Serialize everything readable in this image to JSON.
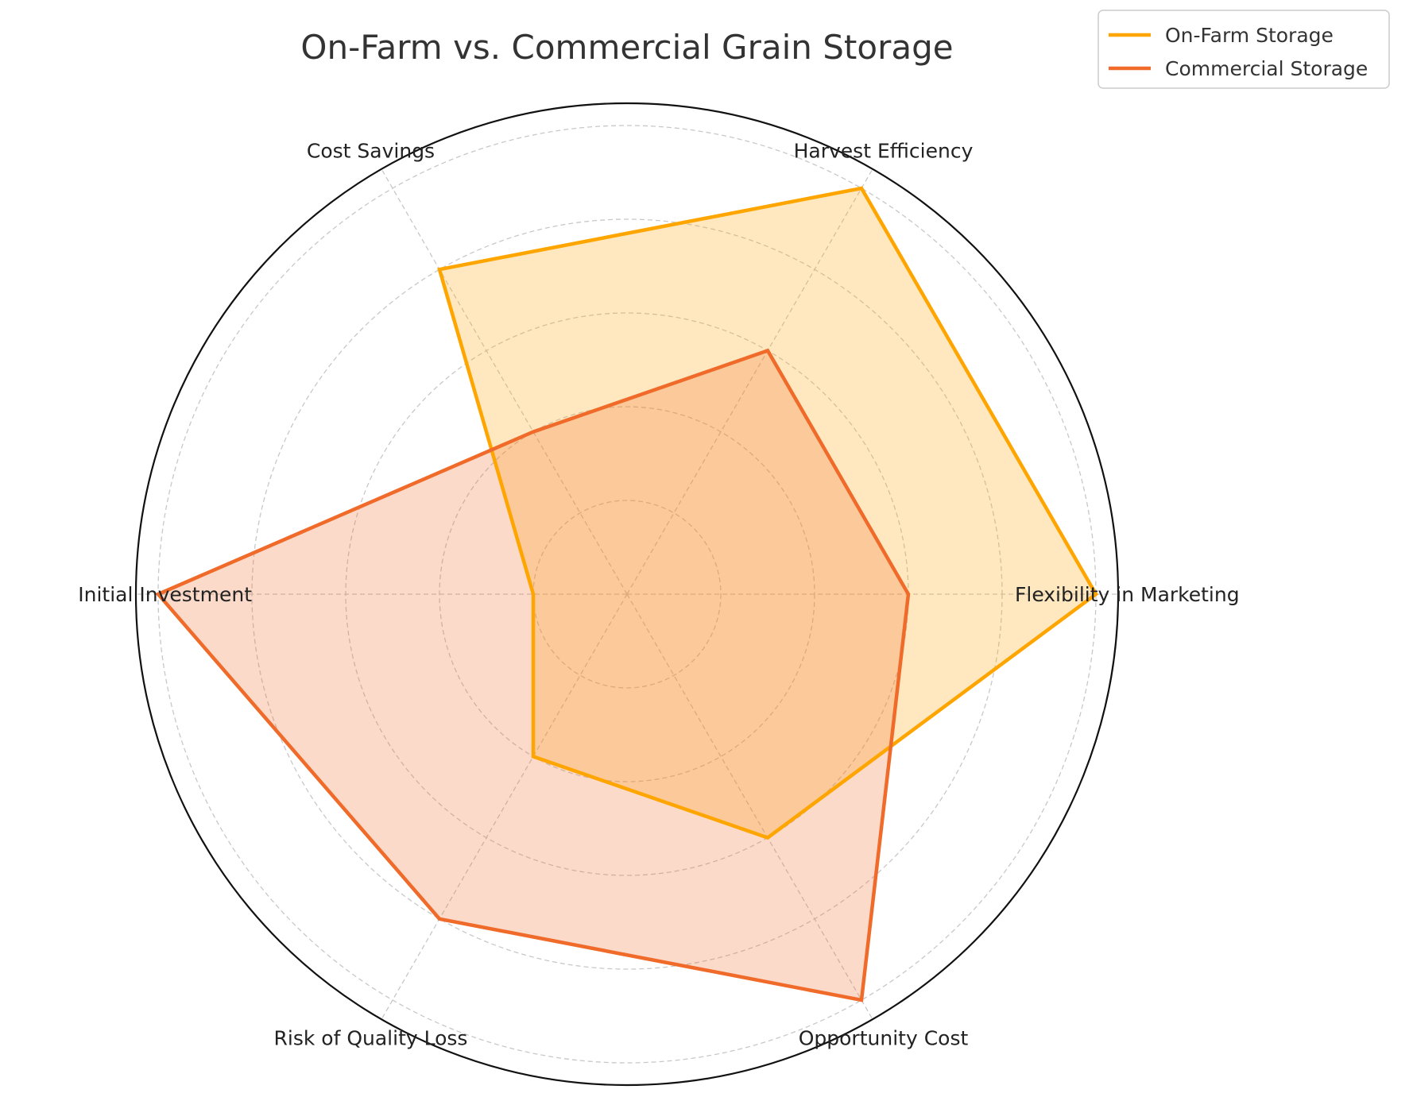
{
  "chart_data": {
    "type": "radar",
    "title": "On-Farm vs. Commercial Grain Storage",
    "axes": [
      "Flexibility in Marketing",
      "Harvest Efficiency",
      "Cost Savings",
      "Initial Investment",
      "Risk of Quality Loss",
      "Opportunity Cost"
    ],
    "rlim": [
      0,
      10
    ],
    "grid": true,
    "legend_position": "top-right",
    "series": [
      {
        "name": "On-Farm Storage",
        "values": [
          10,
          10,
          8,
          2,
          4,
          6
        ],
        "color": "#FFA500"
      },
      {
        "name": "Commercial Storage",
        "values": [
          6,
          6,
          4,
          10,
          8,
          10
        ],
        "color": "#F06A2A"
      }
    ]
  }
}
